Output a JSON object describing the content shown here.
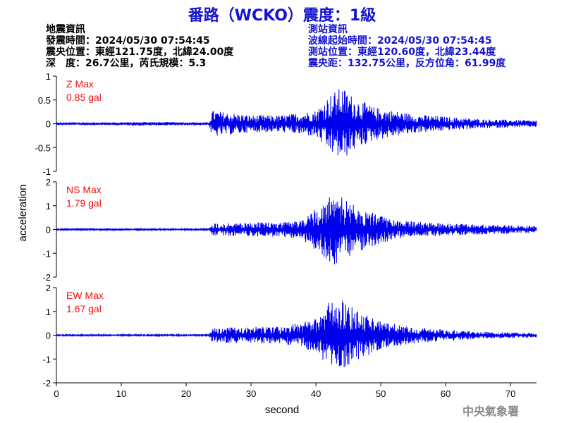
{
  "title": "番路（WCKO）震度：1級",
  "event_info": {
    "heading": "地震資訊",
    "origin_time": "發震時間：2024/05/30 07:54:45",
    "epicenter": "震央位置：東經121.75度，北緯24.00度",
    "depth_magnitude": "深　度：26.7公里，芮氏規模：5.3"
  },
  "station_info": {
    "heading": "測站資訊",
    "wave_start": "波線起始時間：2024/05/30 07:54:45",
    "location": "測站位置：東經120.60度，北緯23.44度",
    "distance": "震央距：132.75公里，反方位角：61.99度"
  },
  "watermark": "中央氣象署",
  "colors": {
    "trace": "#0000ee",
    "title": "#1414d0",
    "max_label": "#ee1111"
  },
  "chart_data": {
    "type": "line",
    "xlabel": "second",
    "ylabel": "acceleration",
    "xlim": [
      0,
      74
    ],
    "x_ticks": [
      "0",
      "10",
      "20",
      "30",
      "40",
      "50",
      "60",
      "70"
    ],
    "panels": [
      {
        "name": "Z Max",
        "max_label": "0.85 gal",
        "max": 0.85,
        "ylim": [
          -1,
          1
        ],
        "y_ticks": [
          "1",
          "0.5",
          "0",
          "-0.5",
          "-1"
        ],
        "tick_values": [
          1,
          0.5,
          0,
          -0.5,
          -1
        ],
        "envelope": [
          [
            0,
            0.02
          ],
          [
            5,
            0.02
          ],
          [
            13,
            0.04
          ],
          [
            23.5,
            0.03
          ],
          [
            24,
            0.28
          ],
          [
            30,
            0.18
          ],
          [
            35,
            0.18
          ],
          [
            40,
            0.28
          ],
          [
            42,
            0.6
          ],
          [
            44,
            0.78
          ],
          [
            46,
            0.55
          ],
          [
            49,
            0.35
          ],
          [
            55,
            0.2
          ],
          [
            65,
            0.1
          ],
          [
            74,
            0.07
          ]
        ]
      },
      {
        "name": "NS Max",
        "max_label": "1.79 gal",
        "max": 1.79,
        "ylim": [
          -2,
          2
        ],
        "y_ticks": [
          "2",
          "1",
          "0",
          "-1",
          "-2"
        ],
        "tick_values": [
          2,
          1,
          0,
          -1,
          -2
        ],
        "envelope": [
          [
            0,
            0.03
          ],
          [
            23.5,
            0.03
          ],
          [
            24,
            0.25
          ],
          [
            30,
            0.3
          ],
          [
            35,
            0.3
          ],
          [
            38,
            0.45
          ],
          [
            41,
            1.1
          ],
          [
            43,
            1.6
          ],
          [
            45,
            1.2
          ],
          [
            48,
            0.8
          ],
          [
            52,
            0.4
          ],
          [
            60,
            0.25
          ],
          [
            74,
            0.15
          ]
        ]
      },
      {
        "name": "EW Max",
        "max_label": "1.67 gal",
        "max": 1.67,
        "ylim": [
          -2,
          2
        ],
        "y_ticks": [
          "2",
          "1",
          "0",
          "-1",
          "-2"
        ],
        "tick_values": [
          2,
          1,
          0,
          -1,
          -2
        ],
        "envelope": [
          [
            0,
            0.03
          ],
          [
            23.5,
            0.03
          ],
          [
            24,
            0.3
          ],
          [
            30,
            0.35
          ],
          [
            35,
            0.35
          ],
          [
            40,
            0.7
          ],
          [
            42,
            1.4
          ],
          [
            44,
            1.5
          ],
          [
            46,
            1.1
          ],
          [
            50,
            0.6
          ],
          [
            55,
            0.35
          ],
          [
            65,
            0.15
          ],
          [
            74,
            0.1
          ]
        ]
      }
    ]
  }
}
